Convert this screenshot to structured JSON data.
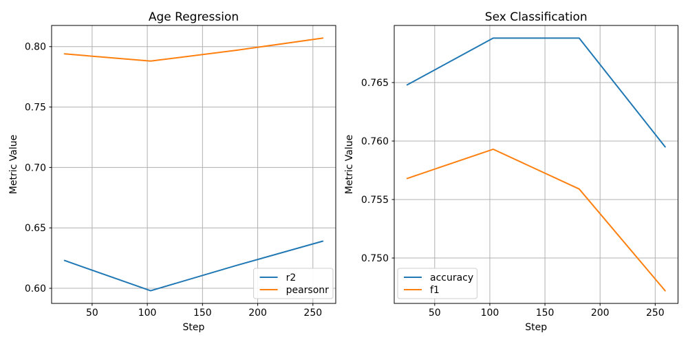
{
  "figure": {
    "background": "#ffffff",
    "grid_color": "#b0b0b0",
    "spine_color": "#000000",
    "legend_border_color": "#cccccc",
    "legend_background": "#ffffff"
  },
  "chart_data": [
    {
      "type": "line",
      "title": "Age Regression",
      "xlabel": "Step",
      "ylabel": "Metric Value",
      "x": [
        25,
        103,
        181,
        259
      ],
      "series": [
        {
          "name": "r2",
          "color": "#1f77b4",
          "values": [
            0.623,
            0.598,
            0.619,
            0.639
          ]
        },
        {
          "name": "pearsonr",
          "color": "#ff7f0e",
          "values": [
            0.794,
            0.788,
            0.797,
            0.807
          ]
        }
      ],
      "xlim": [
        13.3,
        270.7
      ],
      "ylim": [
        0.5875,
        0.8175
      ],
      "xticks": [
        50,
        100,
        150,
        200,
        250
      ],
      "xtick_labels": [
        "50",
        "100",
        "150",
        "200",
        "250"
      ],
      "yticks": [
        0.6,
        0.65,
        0.7,
        0.75,
        0.8
      ],
      "ytick_labels": [
        "0.60",
        "0.65",
        "0.70",
        "0.75",
        "0.80"
      ],
      "grid": true,
      "legend": {
        "loc": "lower-right",
        "entries": [
          "r2",
          "pearsonr"
        ]
      }
    },
    {
      "type": "line",
      "title": "Sex Classification",
      "xlabel": "Step",
      "ylabel": "Metric Value",
      "x": [
        25,
        103,
        181,
        259
      ],
      "series": [
        {
          "name": "accuracy",
          "color": "#1f77b4",
          "values": [
            0.7648,
            0.7688,
            0.7688,
            0.7595
          ]
        },
        {
          "name": "f1",
          "color": "#ff7f0e",
          "values": [
            0.7568,
            0.7593,
            0.7559,
            0.7472
          ]
        }
      ],
      "xlim": [
        13.3,
        270.7
      ],
      "ylim": [
        0.74612,
        0.76988
      ],
      "xticks": [
        50,
        100,
        150,
        200,
        250
      ],
      "xtick_labels": [
        "50",
        "100",
        "150",
        "200",
        "250"
      ],
      "yticks": [
        0.75,
        0.755,
        0.76,
        0.765
      ],
      "ytick_labels": [
        "0.750",
        "0.755",
        "0.760",
        "0.765"
      ],
      "grid": true,
      "legend": {
        "loc": "lower-left",
        "entries": [
          "accuracy",
          "f1"
        ]
      }
    }
  ]
}
